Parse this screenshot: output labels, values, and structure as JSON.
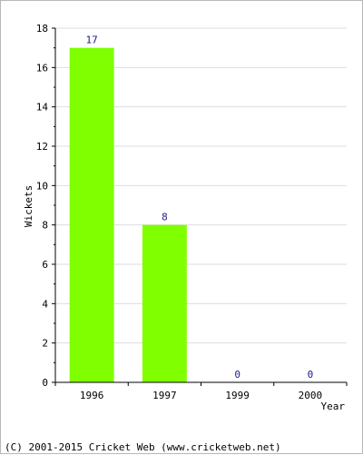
{
  "chart_data": {
    "type": "bar",
    "categories": [
      "1996",
      "1997",
      "1999",
      "2000"
    ],
    "values": [
      17,
      8,
      0,
      0
    ],
    "xlabel": "Year",
    "ylabel": "Wickets",
    "ylim": [
      0,
      18
    ],
    "yticks": [
      "0",
      "2",
      "4",
      "6",
      "8",
      "10",
      "12",
      "14",
      "16",
      "18"
    ],
    "grid": true,
    "bar_color": "#7fff00",
    "label_color": "#1a1a8c"
  },
  "footer": {
    "copyright": "(C) 2001-2015 Cricket Web (www.cricketweb.net)"
  }
}
